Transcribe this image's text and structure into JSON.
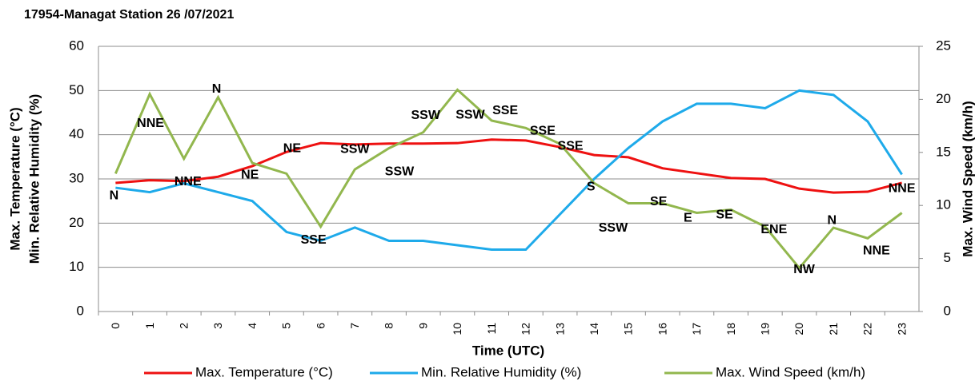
{
  "chart_data": {
    "type": "line",
    "title": "17954-Managat  Station 26 /07/2021",
    "x_label": "Time (UTC)",
    "y_label": [
      "Max. Temperature (°C)",
      "Min. Relative Humidity (%)"
    ],
    "y2_label": "Max. Wind Speed (km/h)",
    "categories": [
      "0",
      "1",
      "2",
      "3",
      "4",
      "5",
      "6",
      "7",
      "8",
      "9",
      "10",
      "11",
      "12",
      "13",
      "14",
      "15",
      "16",
      "17",
      "18",
      "19",
      "20",
      "21",
      "22",
      "23"
    ],
    "ylim": [
      0,
      60
    ],
    "yticks": [
      0,
      10,
      20,
      30,
      40,
      50,
      60
    ],
    "y2lim": [
      0,
      25
    ],
    "y2ticks": [
      0,
      5,
      10,
      15,
      20,
      25
    ],
    "grid": true,
    "legend": "bottom",
    "series": [
      {
        "name": "Max. Temperature (°C)",
        "color": "#ee1111",
        "values": [
          29.1,
          29.7,
          29.5,
          30.5,
          32.9,
          36.1,
          38.1,
          37.8,
          38,
          38,
          38.1,
          38.9,
          38.7,
          37.2,
          35.4,
          34.9,
          32.4,
          31.3,
          30.2,
          30,
          27.8,
          26.9,
          27.1,
          29.1
        ]
      },
      {
        "name": "Min. Relative Humidity (%)",
        "color": "#1eaaea",
        "values": [
          28,
          27,
          29,
          27,
          25,
          18,
          16,
          19,
          16,
          16,
          15,
          14,
          14,
          22,
          30,
          37,
          43,
          47,
          47,
          46,
          50,
          49,
          43,
          31
        ]
      },
      {
        "name": "Max. Wind Speed  (km/h)",
        "color": "#92b74e",
        "axis": "y2",
        "values": [
          13,
          20.5,
          14.4,
          20.2,
          14,
          13,
          8,
          13.4,
          15.4,
          16.9,
          20.9,
          18,
          17.3,
          15.8,
          12.1,
          10.2,
          10.2,
          9.3,
          9.6,
          8,
          4.1,
          7.9,
          6.9,
          9.3
        ],
        "directions": [
          "N",
          "NNE",
          "NNE",
          "N",
          "NE",
          "NE",
          "SSE",
          "SSW",
          "SSW",
          "SSW",
          "SSW",
          "SSE",
          "SSE",
          "SSE",
          "S",
          "SSW",
          "SE",
          "E",
          "SE",
          "ENE",
          "NW",
          "N",
          "NNE",
          "NNE"
        ]
      }
    ]
  }
}
